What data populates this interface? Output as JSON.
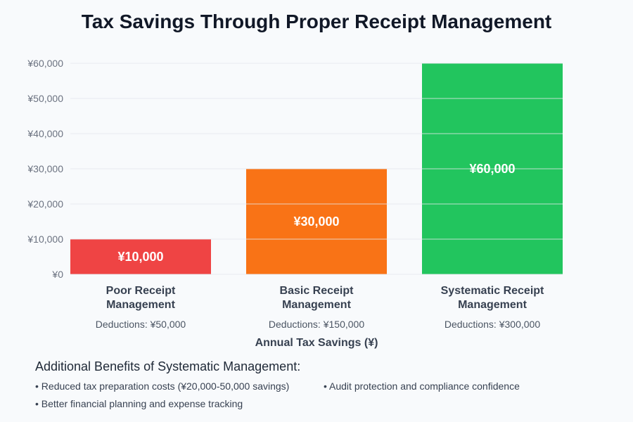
{
  "chart_data": {
    "type": "bar",
    "title": "Tax Savings Through Proper Receipt Management",
    "xlabel": "Annual Tax Savings (¥)",
    "ylabel": "",
    "ylim": [
      0,
      60000
    ],
    "yticks": [
      "¥0",
      "¥10,000",
      "¥20,000",
      "¥30,000",
      "¥40,000",
      "¥50,000",
      "¥60,000"
    ],
    "grid": true,
    "categories": [
      [
        "Poor Receipt",
        "Management"
      ],
      [
        "Basic Receipt",
        "Management"
      ],
      [
        "Systematic Receipt",
        "Management"
      ]
    ],
    "values": [
      10000,
      30000,
      60000
    ],
    "value_labels": [
      "¥10,000",
      "¥30,000",
      "¥60,000"
    ],
    "sublabels": [
      "Deductions: ¥50,000",
      "Deductions: ¥150,000",
      "Deductions: ¥300,000"
    ],
    "colors": [
      "#ef4444",
      "#f97316",
      "#22c55e"
    ]
  },
  "benefits": {
    "title": "Additional Benefits of Systematic Management:",
    "items": [
      "• Reduced tax preparation costs (¥20,000-50,000 savings)",
      "• Audit protection and compliance confidence",
      "• Better financial planning and expense tracking"
    ]
  }
}
